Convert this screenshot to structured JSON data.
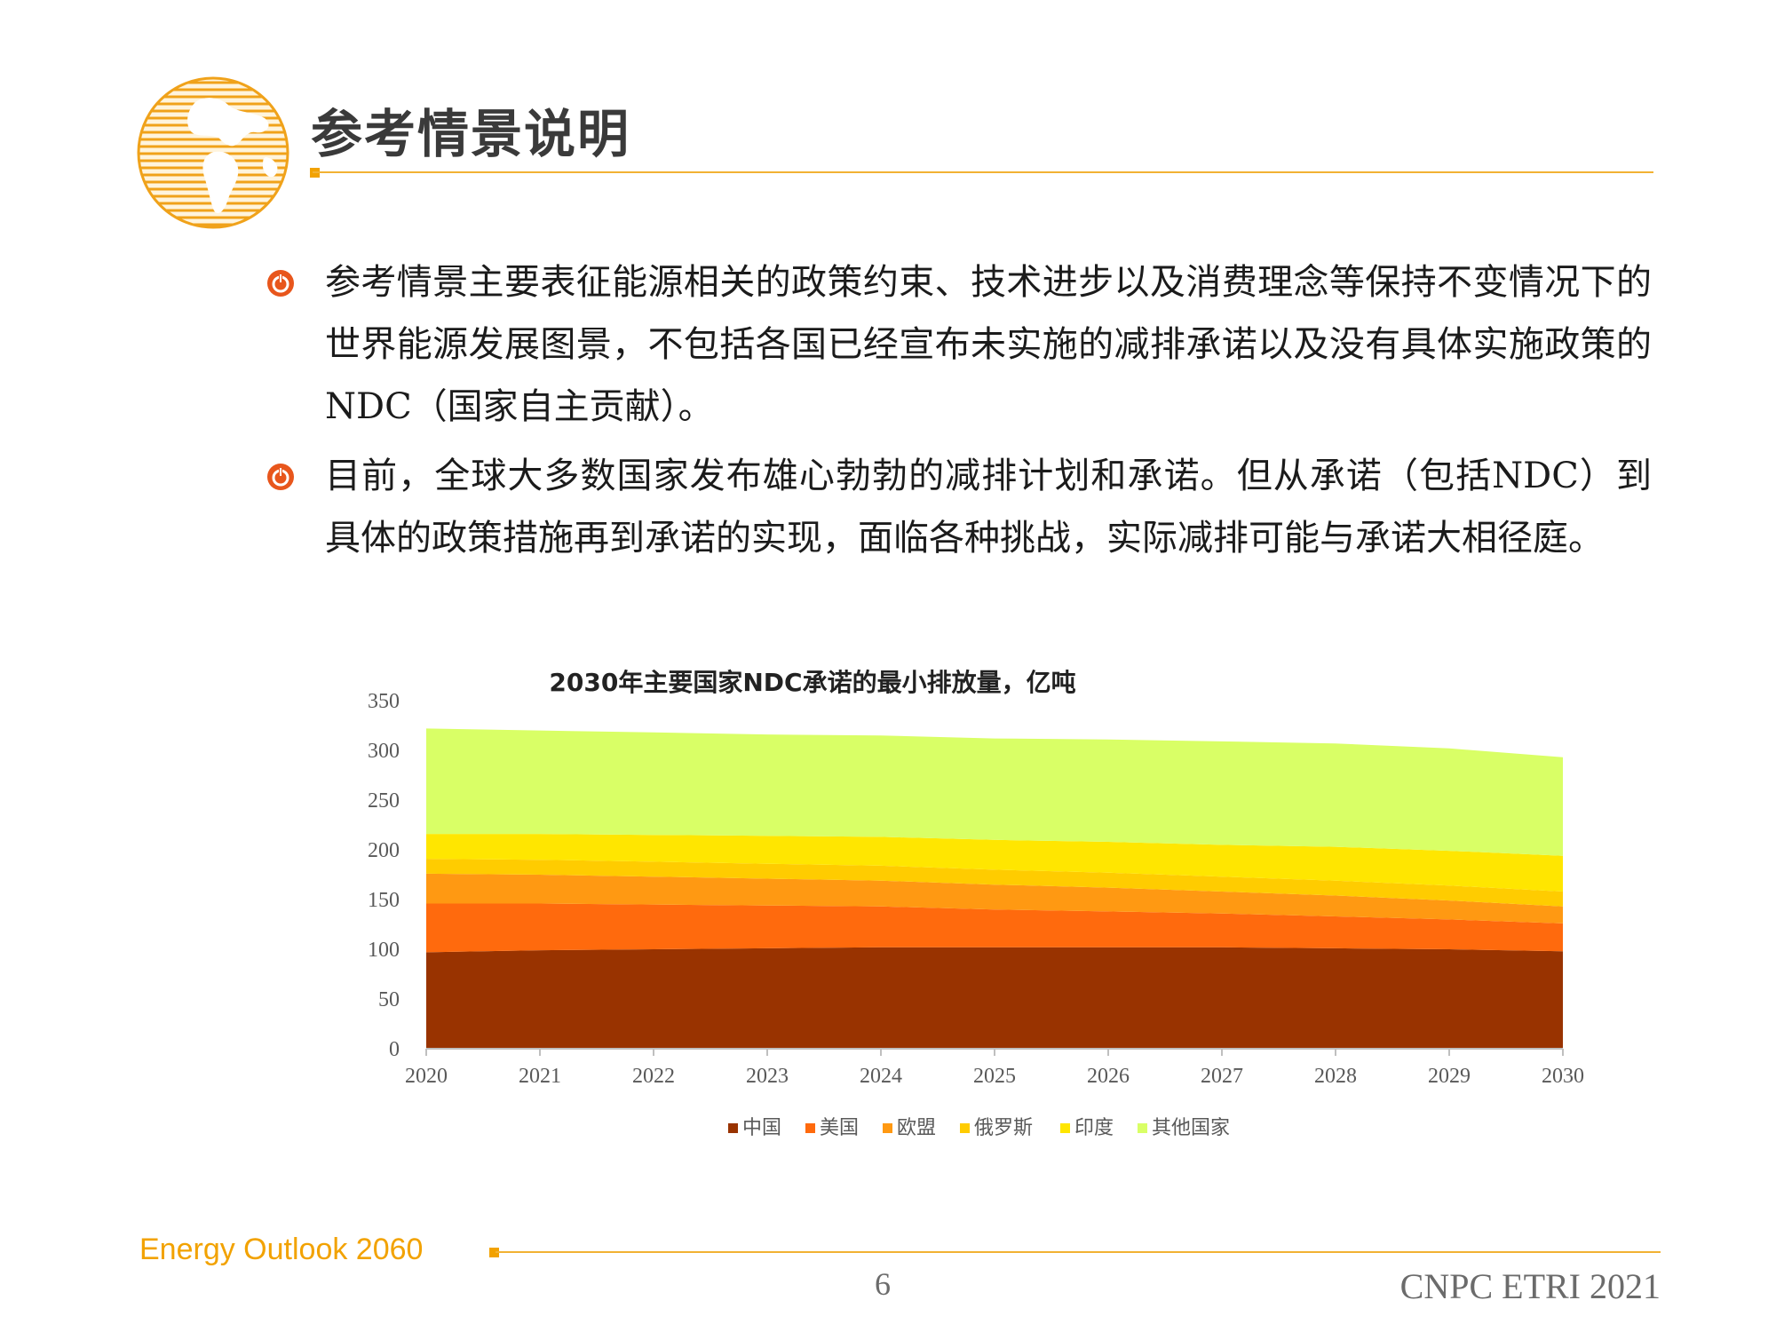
{
  "slide": {
    "title": "参考情景说明",
    "accent_color": "#f2a200",
    "bullets": [
      {
        "icon": "power-icon",
        "text": "参考情景主要表征能源相关的政策约束、技术进步以及消费理念等保持不变情况下的世界能源发展图景，不包括各国已经宣布未实施的减排承诺以及没有具体实施政策的NDC（国家自主贡献）。"
      },
      {
        "icon": "power-icon",
        "text": "目前，全球大多数国家发布雄心勃勃的减排计划和承诺。但从承诺（包括NDC）到具体的政策措施再到承诺的实现，面临各种挑战，实际减排可能与承诺大相径庭。"
      }
    ]
  },
  "footer": {
    "left": "Energy Outlook 2060",
    "page": "6",
    "right": "CNPC ETRI 2021"
  },
  "chart_data": {
    "type": "area",
    "stacked": true,
    "title": "2030年主要国家NDC承诺的最小排放量，亿吨",
    "x": [
      "2020",
      "2021",
      "2022",
      "2023",
      "2024",
      "2025",
      "2026",
      "2027",
      "2028",
      "2029",
      "2030"
    ],
    "ylim": [
      0,
      350
    ],
    "yticks": [
      "0",
      "50",
      "100",
      "150",
      "200",
      "250",
      "300",
      "350"
    ],
    "grid": false,
    "legend_position": "bottom",
    "series": [
      {
        "name": "中国",
        "color": "#993300",
        "values": [
          97,
          99,
          100,
          101,
          102,
          102,
          102,
          102,
          101,
          100,
          98
        ]
      },
      {
        "name": "美国",
        "color": "#ff6a0d",
        "values": [
          49,
          47,
          45,
          43,
          41,
          38,
          36,
          34,
          32,
          30,
          28
        ]
      },
      {
        "name": "欧盟",
        "color": "#ff9912",
        "values": [
          30,
          29,
          28,
          27,
          26,
          25,
          24,
          22,
          21,
          19,
          17
        ]
      },
      {
        "name": "俄罗斯",
        "color": "#ffcc00",
        "values": [
          15,
          15,
          15,
          15,
          15,
          15,
          15,
          15,
          15,
          15,
          15
        ]
      },
      {
        "name": "印度",
        "color": "#ffe600",
        "values": [
          25,
          26,
          27,
          28,
          29,
          30,
          31,
          32,
          34,
          35,
          36
        ]
      },
      {
        "name": "其他国家",
        "color": "#d9ff66",
        "values": [
          106,
          104,
          103,
          102,
          102,
          102,
          103,
          104,
          104,
          103,
          99
        ]
      }
    ]
  }
}
